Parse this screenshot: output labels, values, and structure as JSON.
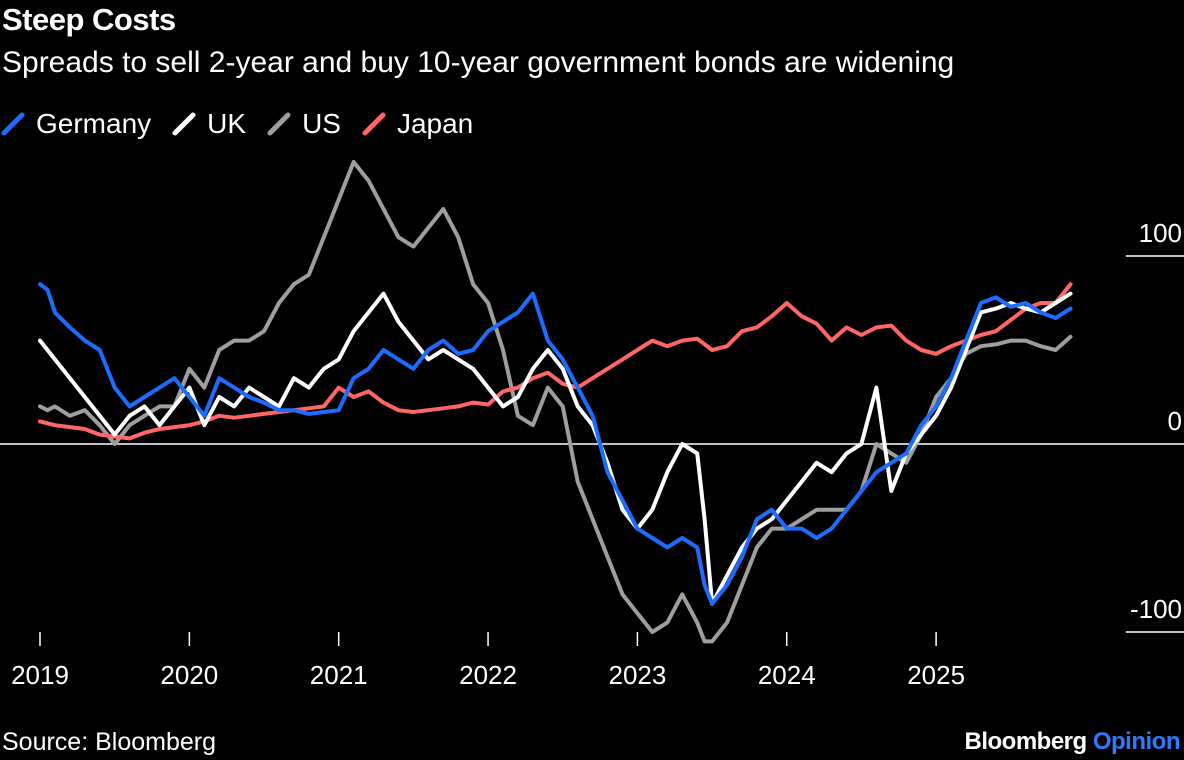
{
  "header": {
    "title": "Steep Costs",
    "subtitle": "Spreads to sell 2-year and buy 10-year government bonds are widening"
  },
  "footer": {
    "source": "Source: Bloomberg",
    "brand_main": "Bloomberg",
    "brand_accent": "Opinion"
  },
  "chart_data": {
    "type": "line",
    "title": "Steep Costs",
    "subtitle": "Spreads to sell 2-year and buy 10-year government bonds are widening",
    "xlabel": "",
    "ylabel": "",
    "xlim": [
      2019.0,
      2025.95
    ],
    "ylim": [
      -100,
      100
    ],
    "yticks": [
      100,
      0,
      -100
    ],
    "ytick_labels": [
      "100",
      "0",
      "-100"
    ],
    "xticks": [
      2019,
      2020,
      2021,
      2022,
      2023,
      2024,
      2025
    ],
    "xtick_labels": [
      "2019",
      "2020",
      "2021",
      "2022",
      "2023",
      "2024",
      "2025"
    ],
    "legend_position": "top-left",
    "series": [
      {
        "name": "Germany",
        "color": "#1a6dff",
        "x": [
          2019.0,
          2019.05,
          2019.1,
          2019.2,
          2019.3,
          2019.4,
          2019.5,
          2019.6,
          2019.7,
          2019.8,
          2019.9,
          2020.0,
          2020.1,
          2020.2,
          2020.3,
          2020.4,
          2020.5,
          2020.6,
          2020.7,
          2020.8,
          2020.9,
          2021.0,
          2021.1,
          2021.2,
          2021.3,
          2021.4,
          2021.5,
          2021.6,
          2021.7,
          2021.8,
          2021.9,
          2022.0,
          2022.1,
          2022.2,
          2022.3,
          2022.4,
          2022.5,
          2022.6,
          2022.7,
          2022.8,
          2022.9,
          2023.0,
          2023.1,
          2023.2,
          2023.3,
          2023.4,
          2023.45,
          2023.5,
          2023.6,
          2023.7,
          2023.8,
          2023.9,
          2024.0,
          2024.1,
          2024.2,
          2024.3,
          2024.4,
          2024.5,
          2024.6,
          2024.7,
          2024.8,
          2024.9,
          2025.0,
          2025.1,
          2025.2,
          2025.3,
          2025.4,
          2025.5,
          2025.6,
          2025.7,
          2025.8,
          2025.9
        ],
        "values": [
          85,
          82,
          70,
          62,
          55,
          50,
          30,
          20,
          25,
          30,
          35,
          25,
          15,
          35,
          30,
          25,
          22,
          18,
          18,
          16,
          17,
          18,
          35,
          40,
          50,
          45,
          40,
          50,
          55,
          48,
          50,
          60,
          65,
          70,
          80,
          55,
          45,
          30,
          15,
          -15,
          -30,
          -45,
          -50,
          -55,
          -50,
          -55,
          -75,
          -85,
          -75,
          -60,
          -40,
          -35,
          -45,
          -45,
          -50,
          -45,
          -35,
          -25,
          -15,
          -10,
          -5,
          10,
          20,
          35,
          55,
          75,
          78,
          73,
          75,
          70,
          67,
          72
        ]
      },
      {
        "name": "UK",
        "color": "#ffffff",
        "x": [
          2019.0,
          2019.05,
          2019.1,
          2019.2,
          2019.3,
          2019.4,
          2019.5,
          2019.6,
          2019.7,
          2019.8,
          2019.9,
          2020.0,
          2020.1,
          2020.2,
          2020.3,
          2020.4,
          2020.5,
          2020.6,
          2020.7,
          2020.8,
          2020.9,
          2021.0,
          2021.1,
          2021.2,
          2021.3,
          2021.4,
          2021.5,
          2021.6,
          2021.7,
          2021.8,
          2021.9,
          2022.0,
          2022.1,
          2022.2,
          2022.3,
          2022.4,
          2022.5,
          2022.6,
          2022.7,
          2022.8,
          2022.9,
          2023.0,
          2023.1,
          2023.2,
          2023.3,
          2023.4,
          2023.45,
          2023.5,
          2023.6,
          2023.7,
          2023.8,
          2023.9,
          2024.0,
          2024.1,
          2024.2,
          2024.3,
          2024.4,
          2024.5,
          2024.6,
          2024.7,
          2024.8,
          2024.9,
          2025.0,
          2025.1,
          2025.2,
          2025.3,
          2025.4,
          2025.5,
          2025.6,
          2025.7,
          2025.8,
          2025.9
        ],
        "values": [
          55,
          50,
          45,
          35,
          25,
          15,
          5,
          15,
          20,
          10,
          20,
          30,
          10,
          25,
          20,
          30,
          25,
          20,
          35,
          30,
          40,
          45,
          60,
          70,
          80,
          65,
          55,
          45,
          50,
          45,
          40,
          30,
          20,
          25,
          40,
          50,
          40,
          20,
          10,
          -10,
          -35,
          -45,
          -35,
          -15,
          0,
          -5,
          -40,
          -85,
          -70,
          -55,
          -45,
          -40,
          -30,
          -20,
          -10,
          -15,
          -5,
          0,
          30,
          -25,
          -5,
          5,
          15,
          30,
          50,
          70,
          72,
          75,
          72,
          70,
          75,
          80
        ]
      },
      {
        "name": "US",
        "color": "#9e9e9e",
        "x": [
          2019.0,
          2019.05,
          2019.1,
          2019.2,
          2019.3,
          2019.4,
          2019.5,
          2019.6,
          2019.7,
          2019.8,
          2019.9,
          2020.0,
          2020.1,
          2020.2,
          2020.3,
          2020.4,
          2020.5,
          2020.6,
          2020.7,
          2020.8,
          2020.9,
          2021.0,
          2021.1,
          2021.2,
          2021.3,
          2021.4,
          2021.5,
          2021.6,
          2021.7,
          2021.8,
          2021.9,
          2022.0,
          2022.1,
          2022.2,
          2022.3,
          2022.4,
          2022.5,
          2022.6,
          2022.7,
          2022.8,
          2022.9,
          2023.0,
          2023.1,
          2023.2,
          2023.3,
          2023.4,
          2023.45,
          2023.5,
          2023.6,
          2023.7,
          2023.8,
          2023.9,
          2024.0,
          2024.1,
          2024.2,
          2024.3,
          2024.4,
          2024.5,
          2024.6,
          2024.7,
          2024.8,
          2024.9,
          2025.0,
          2025.1,
          2025.2,
          2025.3,
          2025.4,
          2025.5,
          2025.6,
          2025.7,
          2025.8,
          2025.9
        ],
        "values": [
          20,
          18,
          20,
          15,
          18,
          10,
          0,
          10,
          15,
          20,
          20,
          40,
          30,
          50,
          55,
          55,
          60,
          75,
          85,
          90,
          110,
          130,
          150,
          140,
          125,
          110,
          105,
          115,
          125,
          110,
          85,
          75,
          50,
          15,
          10,
          30,
          20,
          -20,
          -40,
          -60,
          -80,
          -90,
          -100,
          -95,
          -80,
          -95,
          -105,
          -105,
          -95,
          -75,
          -55,
          -45,
          -45,
          -40,
          -35,
          -35,
          -35,
          -25,
          0,
          -5,
          -10,
          5,
          25,
          35,
          48,
          52,
          53,
          55,
          55,
          52,
          50,
          57
        ]
      },
      {
        "name": "Japan",
        "color": "#ff6666",
        "x": [
          2019.0,
          2019.1,
          2019.2,
          2019.3,
          2019.4,
          2019.5,
          2019.6,
          2019.7,
          2019.8,
          2019.9,
          2020.0,
          2020.1,
          2020.2,
          2020.3,
          2020.4,
          2020.5,
          2020.6,
          2020.7,
          2020.8,
          2020.9,
          2021.0,
          2021.1,
          2021.2,
          2021.3,
          2021.4,
          2021.5,
          2021.6,
          2021.7,
          2021.8,
          2021.9,
          2022.0,
          2022.1,
          2022.2,
          2022.3,
          2022.4,
          2022.5,
          2022.6,
          2022.7,
          2022.8,
          2022.9,
          2023.0,
          2023.1,
          2023.2,
          2023.3,
          2023.4,
          2023.5,
          2023.6,
          2023.7,
          2023.8,
          2023.9,
          2024.0,
          2024.1,
          2024.2,
          2024.3,
          2024.4,
          2024.5,
          2024.6,
          2024.7,
          2024.8,
          2024.9,
          2025.0,
          2025.1,
          2025.2,
          2025.3,
          2025.4,
          2025.5,
          2025.6,
          2025.7,
          2025.8,
          2025.9
        ],
        "values": [
          12,
          10,
          9,
          8,
          5,
          4,
          3,
          6,
          8,
          9,
          10,
          12,
          15,
          14,
          15,
          16,
          17,
          18,
          19,
          20,
          30,
          25,
          28,
          22,
          18,
          17,
          18,
          19,
          20,
          22,
          21,
          28,
          30,
          35,
          38,
          32,
          30,
          35,
          40,
          45,
          50,
          55,
          52,
          55,
          56,
          50,
          52,
          60,
          62,
          68,
          75,
          68,
          64,
          55,
          62,
          58,
          62,
          63,
          55,
          50,
          48,
          52,
          55,
          58,
          60,
          66,
          72,
          75,
          75,
          85
        ]
      }
    ]
  }
}
